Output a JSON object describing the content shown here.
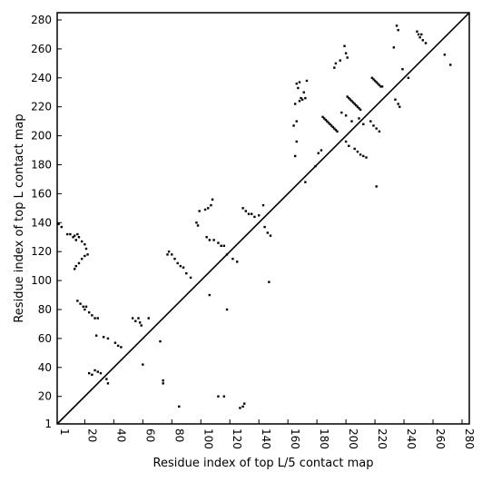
{
  "chart_data": {
    "type": "scatter",
    "title": "",
    "xlabel": "Residue index of top L/5 contact map",
    "ylabel": "Residue index of top L contact map",
    "xlim": [
      1,
      285
    ],
    "ylim": [
      1,
      285
    ],
    "x_ticks": [
      1,
      20,
      40,
      60,
      80,
      100,
      120,
      140,
      160,
      180,
      200,
      220,
      240,
      260,
      280
    ],
    "y_ticks": [
      1,
      20,
      40,
      60,
      80,
      100,
      120,
      140,
      160,
      180,
      200,
      220,
      240,
      260,
      280
    ],
    "grid": false,
    "legend": "none",
    "diagonal": true,
    "marker_color": "#000000",
    "upper_series": {
      "name": "",
      "points": [
        [
          201,
          227
        ],
        [
          202,
          226
        ],
        [
          203,
          225
        ],
        [
          204,
          224
        ],
        [
          205,
          223
        ],
        [
          206,
          222
        ],
        [
          207,
          221
        ],
        [
          208,
          220
        ],
        [
          209,
          219
        ],
        [
          210,
          218
        ],
        [
          218,
          240
        ],
        [
          219,
          239
        ],
        [
          220,
          238
        ],
        [
          221,
          237
        ],
        [
          222,
          236
        ],
        [
          223,
          235
        ],
        [
          224,
          234
        ],
        [
          225,
          234
        ],
        [
          184,
          213
        ],
        [
          185,
          212
        ],
        [
          186,
          211
        ],
        [
          187,
          210
        ],
        [
          188,
          209
        ],
        [
          189,
          208
        ],
        [
          190,
          207
        ],
        [
          191,
          206
        ],
        [
          192,
          205
        ],
        [
          193,
          204
        ],
        [
          194,
          203
        ],
        [
          199,
          262
        ],
        [
          200,
          257
        ],
        [
          201,
          254
        ],
        [
          192,
          247
        ],
        [
          193,
          250
        ],
        [
          196,
          252
        ],
        [
          165,
          222
        ],
        [
          166,
          236
        ],
        [
          168,
          224
        ],
        [
          169,
          226
        ],
        [
          170,
          225
        ],
        [
          172,
          226
        ],
        [
          166,
          210
        ],
        [
          165,
          186
        ],
        [
          235,
          276
        ],
        [
          236,
          273
        ],
        [
          233,
          261
        ],
        [
          239,
          246
        ],
        [
          243,
          240
        ],
        [
          249,
          272
        ],
        [
          250,
          270
        ],
        [
          251,
          268
        ],
        [
          252,
          270
        ],
        [
          253,
          266
        ],
        [
          255,
          264
        ],
        [
          268,
          256
        ],
        [
          272,
          249
        ],
        [
          183,
          190
        ],
        [
          181,
          188
        ],
        [
          179,
          179
        ],
        [
          166,
          196
        ],
        [
          164,
          207
        ],
        [
          172,
          168
        ],
        [
          197,
          216
        ],
        [
          200,
          214
        ],
        [
          204,
          210
        ],
        [
          209,
          212
        ],
        [
          212,
          208
        ],
        [
          167,
          233
        ],
        [
          168,
          237
        ],
        [
          171,
          230
        ],
        [
          173,
          238
        ]
      ]
    },
    "lower_series": {
      "name": "",
      "points": [
        [
          2,
          139
        ],
        [
          4,
          137
        ],
        [
          8,
          132
        ],
        [
          10,
          132
        ],
        [
          12,
          130
        ],
        [
          13,
          131
        ],
        [
          14,
          128
        ],
        [
          15,
          132
        ],
        [
          16,
          130
        ],
        [
          18,
          127
        ],
        [
          20,
          125
        ],
        [
          21,
          122
        ],
        [
          22,
          118
        ],
        [
          13,
          108
        ],
        [
          14,
          110
        ],
        [
          16,
          112
        ],
        [
          18,
          115
        ],
        [
          20,
          117
        ],
        [
          15,
          86
        ],
        [
          17,
          84
        ],
        [
          19,
          82
        ],
        [
          20,
          80
        ],
        [
          21,
          82
        ],
        [
          23,
          78
        ],
        [
          25,
          76
        ],
        [
          27,
          74
        ],
        [
          29,
          74
        ],
        [
          23,
          36
        ],
        [
          25,
          35
        ],
        [
          27,
          38
        ],
        [
          29,
          37
        ],
        [
          31,
          36
        ],
        [
          35,
          32
        ],
        [
          36,
          29
        ],
        [
          28,
          62
        ],
        [
          33,
          61
        ],
        [
          36,
          60
        ],
        [
          41,
          57
        ],
        [
          43,
          55
        ],
        [
          45,
          54
        ],
        [
          53,
          74
        ],
        [
          55,
          72
        ],
        [
          57,
          74
        ],
        [
          58,
          71
        ],
        [
          59,
          69
        ],
        [
          64,
          74
        ],
        [
          72,
          58
        ],
        [
          74,
          31
        ],
        [
          74,
          29
        ],
        [
          60,
          42
        ],
        [
          77,
          118
        ],
        [
          78,
          120
        ],
        [
          80,
          118
        ],
        [
          82,
          115
        ],
        [
          84,
          112
        ],
        [
          86,
          110
        ],
        [
          88,
          109
        ],
        [
          90,
          105
        ],
        [
          93,
          102
        ],
        [
          97,
          140
        ],
        [
          98,
          138
        ],
        [
          99,
          148
        ],
        [
          103,
          149
        ],
        [
          105,
          150
        ],
        [
          107,
          152
        ],
        [
          108,
          156
        ],
        [
          104,
          130
        ],
        [
          106,
          128
        ],
        [
          109,
          128
        ],
        [
          112,
          126
        ],
        [
          114,
          124
        ],
        [
          116,
          124
        ],
        [
          118,
          118
        ],
        [
          122,
          115
        ],
        [
          125,
          113
        ],
        [
          129,
          150
        ],
        [
          131,
          148
        ],
        [
          133,
          146
        ],
        [
          135,
          146
        ],
        [
          137,
          144
        ],
        [
          140,
          145
        ],
        [
          143,
          152
        ],
        [
          144,
          137
        ],
        [
          146,
          133
        ],
        [
          148,
          131
        ],
        [
          147,
          99
        ],
        [
          106,
          90
        ],
        [
          118,
          80
        ],
        [
          112,
          20
        ],
        [
          116,
          20
        ],
        [
          127,
          12
        ],
        [
          129,
          13
        ],
        [
          130,
          15
        ],
        [
          85,
          13
        ],
        [
          200,
          196
        ],
        [
          202,
          193
        ],
        [
          206,
          191
        ],
        [
          208,
          189
        ],
        [
          210,
          187
        ],
        [
          212,
          186
        ],
        [
          214,
          185
        ],
        [
          217,
          210
        ],
        [
          219,
          207
        ],
        [
          221,
          205
        ],
        [
          223,
          203
        ],
        [
          221,
          165
        ],
        [
          234,
          225
        ],
        [
          236,
          222
        ],
        [
          237,
          220
        ]
      ]
    }
  }
}
